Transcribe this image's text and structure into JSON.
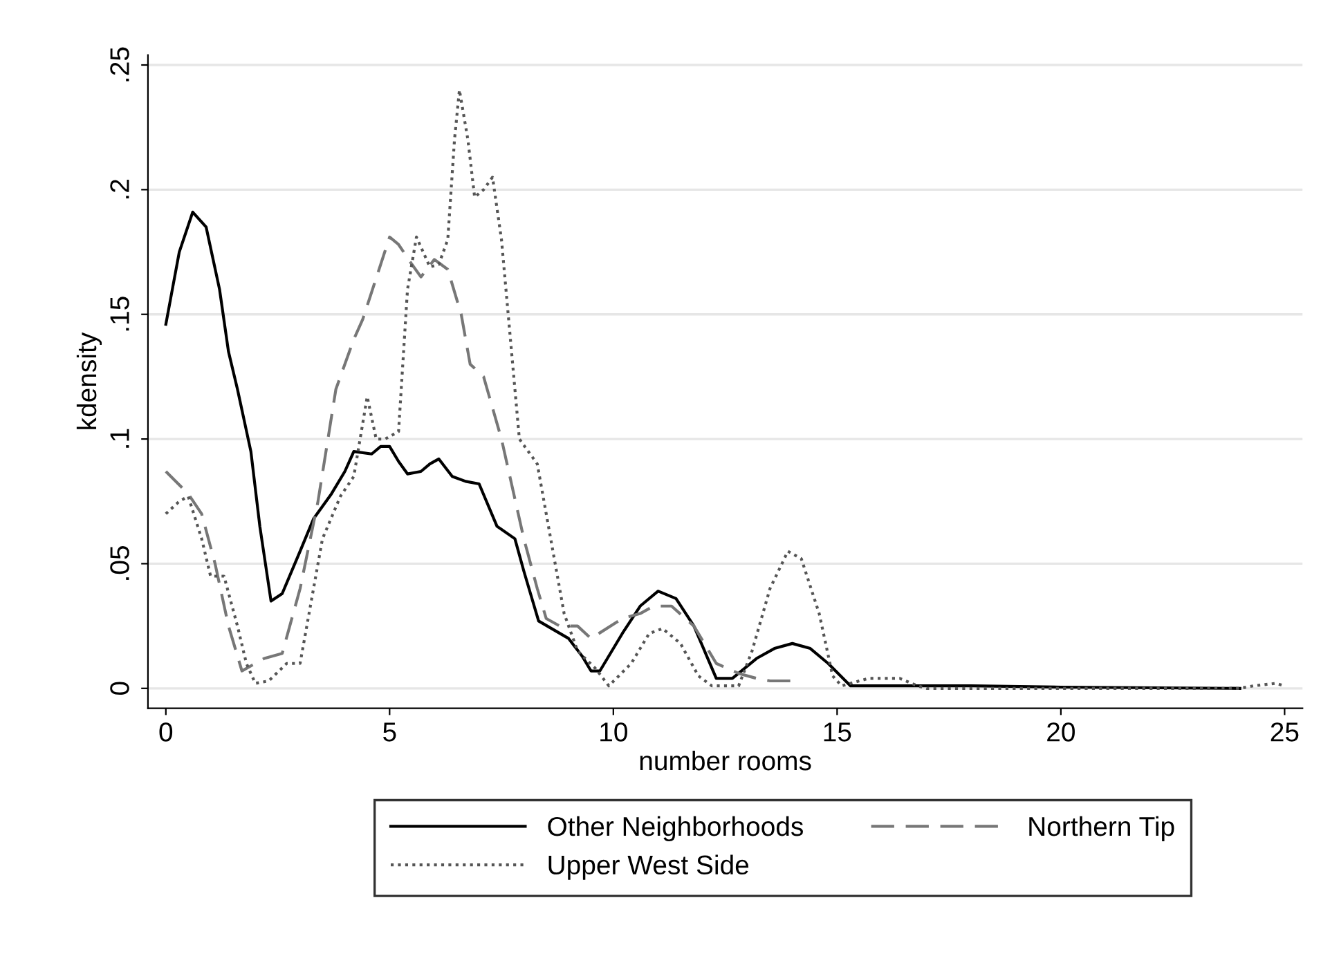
{
  "chart_data": {
    "type": "line",
    "xlabel": "number rooms",
    "ylabel": "kdensity",
    "xlim": [
      -0.4,
      25.4
    ],
    "ylim": [
      -0.008,
      0.254
    ],
    "xticks": [
      0,
      5,
      10,
      15,
      20,
      25
    ],
    "yticks": [
      {
        "value": 0,
        "label": "0"
      },
      {
        "value": 0.05,
        "label": ".05"
      },
      {
        "value": 0.1,
        "label": ".1"
      },
      {
        "value": 0.15,
        "label": ".15"
      },
      {
        "value": 0.2,
        "label": ".2"
      },
      {
        "value": 0.25,
        "label": ".25"
      }
    ],
    "grid": "y",
    "legend": "bottom",
    "series": [
      {
        "name": "Other Neighborhoods",
        "color": "#000000",
        "line_style": "solid",
        "x": [
          0,
          0.3,
          0.6,
          0.9,
          1.2,
          1.4,
          1.6,
          1.9,
          2.1,
          2.35,
          2.6,
          3.0,
          3.3,
          3.7,
          4.0,
          4.2,
          4.6,
          4.8,
          5.0,
          5.2,
          5.4,
          5.7,
          5.9,
          6.1,
          6.4,
          6.7,
          7.0,
          7.4,
          7.8,
          8.0,
          8.33,
          9.0,
          9.3,
          9.5,
          9.7,
          10.2,
          10.6,
          11.0,
          11.4,
          11.8,
          12.3,
          12.66,
          13.2,
          13.6,
          14.0,
          14.4,
          14.8,
          15.3,
          16,
          18,
          20,
          24
        ],
        "values": [
          0.146,
          0.175,
          0.191,
          0.185,
          0.16,
          0.135,
          0.12,
          0.095,
          0.065,
          0.035,
          0.038,
          0.055,
          0.068,
          0.078,
          0.087,
          0.095,
          0.094,
          0.097,
          0.097,
          0.091,
          0.086,
          0.087,
          0.09,
          0.092,
          0.085,
          0.083,
          0.082,
          0.065,
          0.06,
          0.047,
          0.027,
          0.02,
          0.013,
          0.007,
          0.007,
          0.022,
          0.033,
          0.039,
          0.036,
          0.025,
          0.004,
          0.004,
          0.012,
          0.016,
          0.018,
          0.016,
          0.01,
          0.001,
          0.001,
          0.001,
          0.0005,
          0
        ]
      },
      {
        "name": "Northern Tip",
        "color": "#777777",
        "line_style": "dashed",
        "x": [
          0,
          0.5,
          0.8,
          1.1,
          1.4,
          1.7,
          2.2,
          2.6,
          3.0,
          3.4,
          3.8,
          4.2,
          4.4,
          4.8,
          5.0,
          5.2,
          5.5,
          5.7,
          6.0,
          6.3,
          6.6,
          6.8,
          7.1,
          7.5,
          8.0,
          8.3,
          8.5,
          8.8,
          9.2,
          9.5,
          10.2,
          10.6,
          10.9,
          11.3,
          11.8,
          12.3,
          12.8,
          13.2,
          13.5,
          14.0
        ],
        "values": [
          0.087,
          0.078,
          0.07,
          0.05,
          0.025,
          0.007,
          0.012,
          0.014,
          0.04,
          0.075,
          0.12,
          0.14,
          0.148,
          0.17,
          0.181,
          0.178,
          0.17,
          0.165,
          0.172,
          0.168,
          0.15,
          0.13,
          0.125,
          0.1,
          0.06,
          0.04,
          0.028,
          0.025,
          0.025,
          0.02,
          0.028,
          0.03,
          0.033,
          0.033,
          0.025,
          0.01,
          0.006,
          0.004,
          0.003,
          0.003
        ]
      },
      {
        "name": "Upper West Side",
        "color": "#555555",
        "line_style": "dotted",
        "x": [
          0,
          0.3,
          0.5,
          0.8,
          1.0,
          1.3,
          1.6,
          1.8,
          2.0,
          2.3,
          2.7,
          3.0,
          3.2,
          3.5,
          3.9,
          4.2,
          4.5,
          4.7,
          4.9,
          5.2,
          5.4,
          5.6,
          5.9,
          6.1,
          6.3,
          6.45,
          6.56,
          6.75,
          6.9,
          7.1,
          7.3,
          7.5,
          7.7,
          7.9,
          8.3,
          8.6,
          8.9,
          9.2,
          9.6,
          9.9,
          10.4,
          10.8,
          11.1,
          11.5,
          11.9,
          12.2,
          12.8,
          13.1,
          13.5,
          13.9,
          14.2,
          14.6,
          14.9,
          15.1,
          15.7,
          16.4,
          16.8,
          17,
          24,
          24.3,
          24.8,
          25
        ],
        "values": [
          0.07,
          0.075,
          0.077,
          0.06,
          0.045,
          0.045,
          0.025,
          0.01,
          0.002,
          0.003,
          0.01,
          0.01,
          0.03,
          0.06,
          0.077,
          0.085,
          0.117,
          0.1,
          0.1,
          0.103,
          0.16,
          0.181,
          0.169,
          0.17,
          0.18,
          0.22,
          0.24,
          0.22,
          0.197,
          0.2,
          0.205,
          0.18,
          0.14,
          0.1,
          0.09,
          0.06,
          0.03,
          0.015,
          0.008,
          0.001,
          0.01,
          0.022,
          0.024,
          0.018,
          0.005,
          0.001,
          0.001,
          0.015,
          0.04,
          0.055,
          0.052,
          0.03,
          0.005,
          0.001,
          0.004,
          0.004,
          0.001,
          0,
          0,
          0.001,
          0.002,
          0.001
        ]
      }
    ]
  }
}
